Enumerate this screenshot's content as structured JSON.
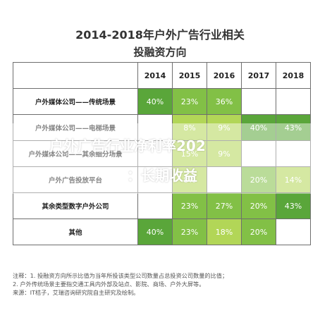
{
  "colors": {
    "dark_green": "#5aa63a",
    "mid_green": "#82c046",
    "light_green": "#b2d657",
    "overlay_text": "#ffffff"
  },
  "overlay": {
    "line1": "户外广告行业净利率202",
    "line2": "：长期收益"
  },
  "notes": {
    "line1": "注释：1. 投融资方向所示比值为当年所投该类型公司数量占总投资公司数量的比值；",
    "line2": "2. 户外传统场景主要指交通工具内外部及站点、影院、商场、户外大屏等。",
    "line3": "来源：IT桔子，艾瑞咨询研究院自主研究及绘制。"
  },
  "chart_data": {
    "type": "table",
    "title": "2014-2018年户外广告行业相关",
    "subtitle": "投融资方向",
    "columns": [
      "2014",
      "2015",
      "2016",
      "2017",
      "2018"
    ],
    "rows": [
      {
        "label": "户外媒体公司——传统场景",
        "values": [
          "40%",
          "23%",
          "36%",
          "",
          ""
        ],
        "colors": [
          "#5aa63a",
          "#82c046",
          "#82c046",
          "",
          ""
        ]
      },
      {
        "label": "户外媒体公司——电梯场景",
        "values": [
          "",
          "8%",
          "9%",
          "40%",
          "43%"
        ],
        "colors": [
          "",
          "#b2d657",
          "#b2d657",
          "#5aa63a",
          "#5aa63a"
        ]
      },
      {
        "label": "户外媒体公司——其余细分场景",
        "values": [
          "",
          "15%",
          "9%",
          "",
          ""
        ],
        "colors": [
          "",
          "#b2d657",
          "#b2d657",
          "",
          ""
        ]
      },
      {
        "label": "户外广告投放平台",
        "values": [
          "",
          "8%",
          "",
          "20%",
          "14%"
        ],
        "colors": [
          "",
          "#b2d657",
          "",
          "#82c046",
          "#b2d657"
        ]
      },
      {
        "label": "其余类型数字户外公司",
        "values": [
          "",
          "23%",
          "27%",
          "20%",
          "43%"
        ],
        "colors": [
          "",
          "#82c046",
          "#82c046",
          "#82c046",
          "#5aa63a"
        ]
      },
      {
        "label": "其他",
        "values": [
          "40%",
          "23%",
          "18%",
          "20%",
          ""
        ],
        "colors": [
          "#5aa63a",
          "#82c046",
          "#b2d657",
          "#82c046",
          ""
        ]
      }
    ]
  }
}
